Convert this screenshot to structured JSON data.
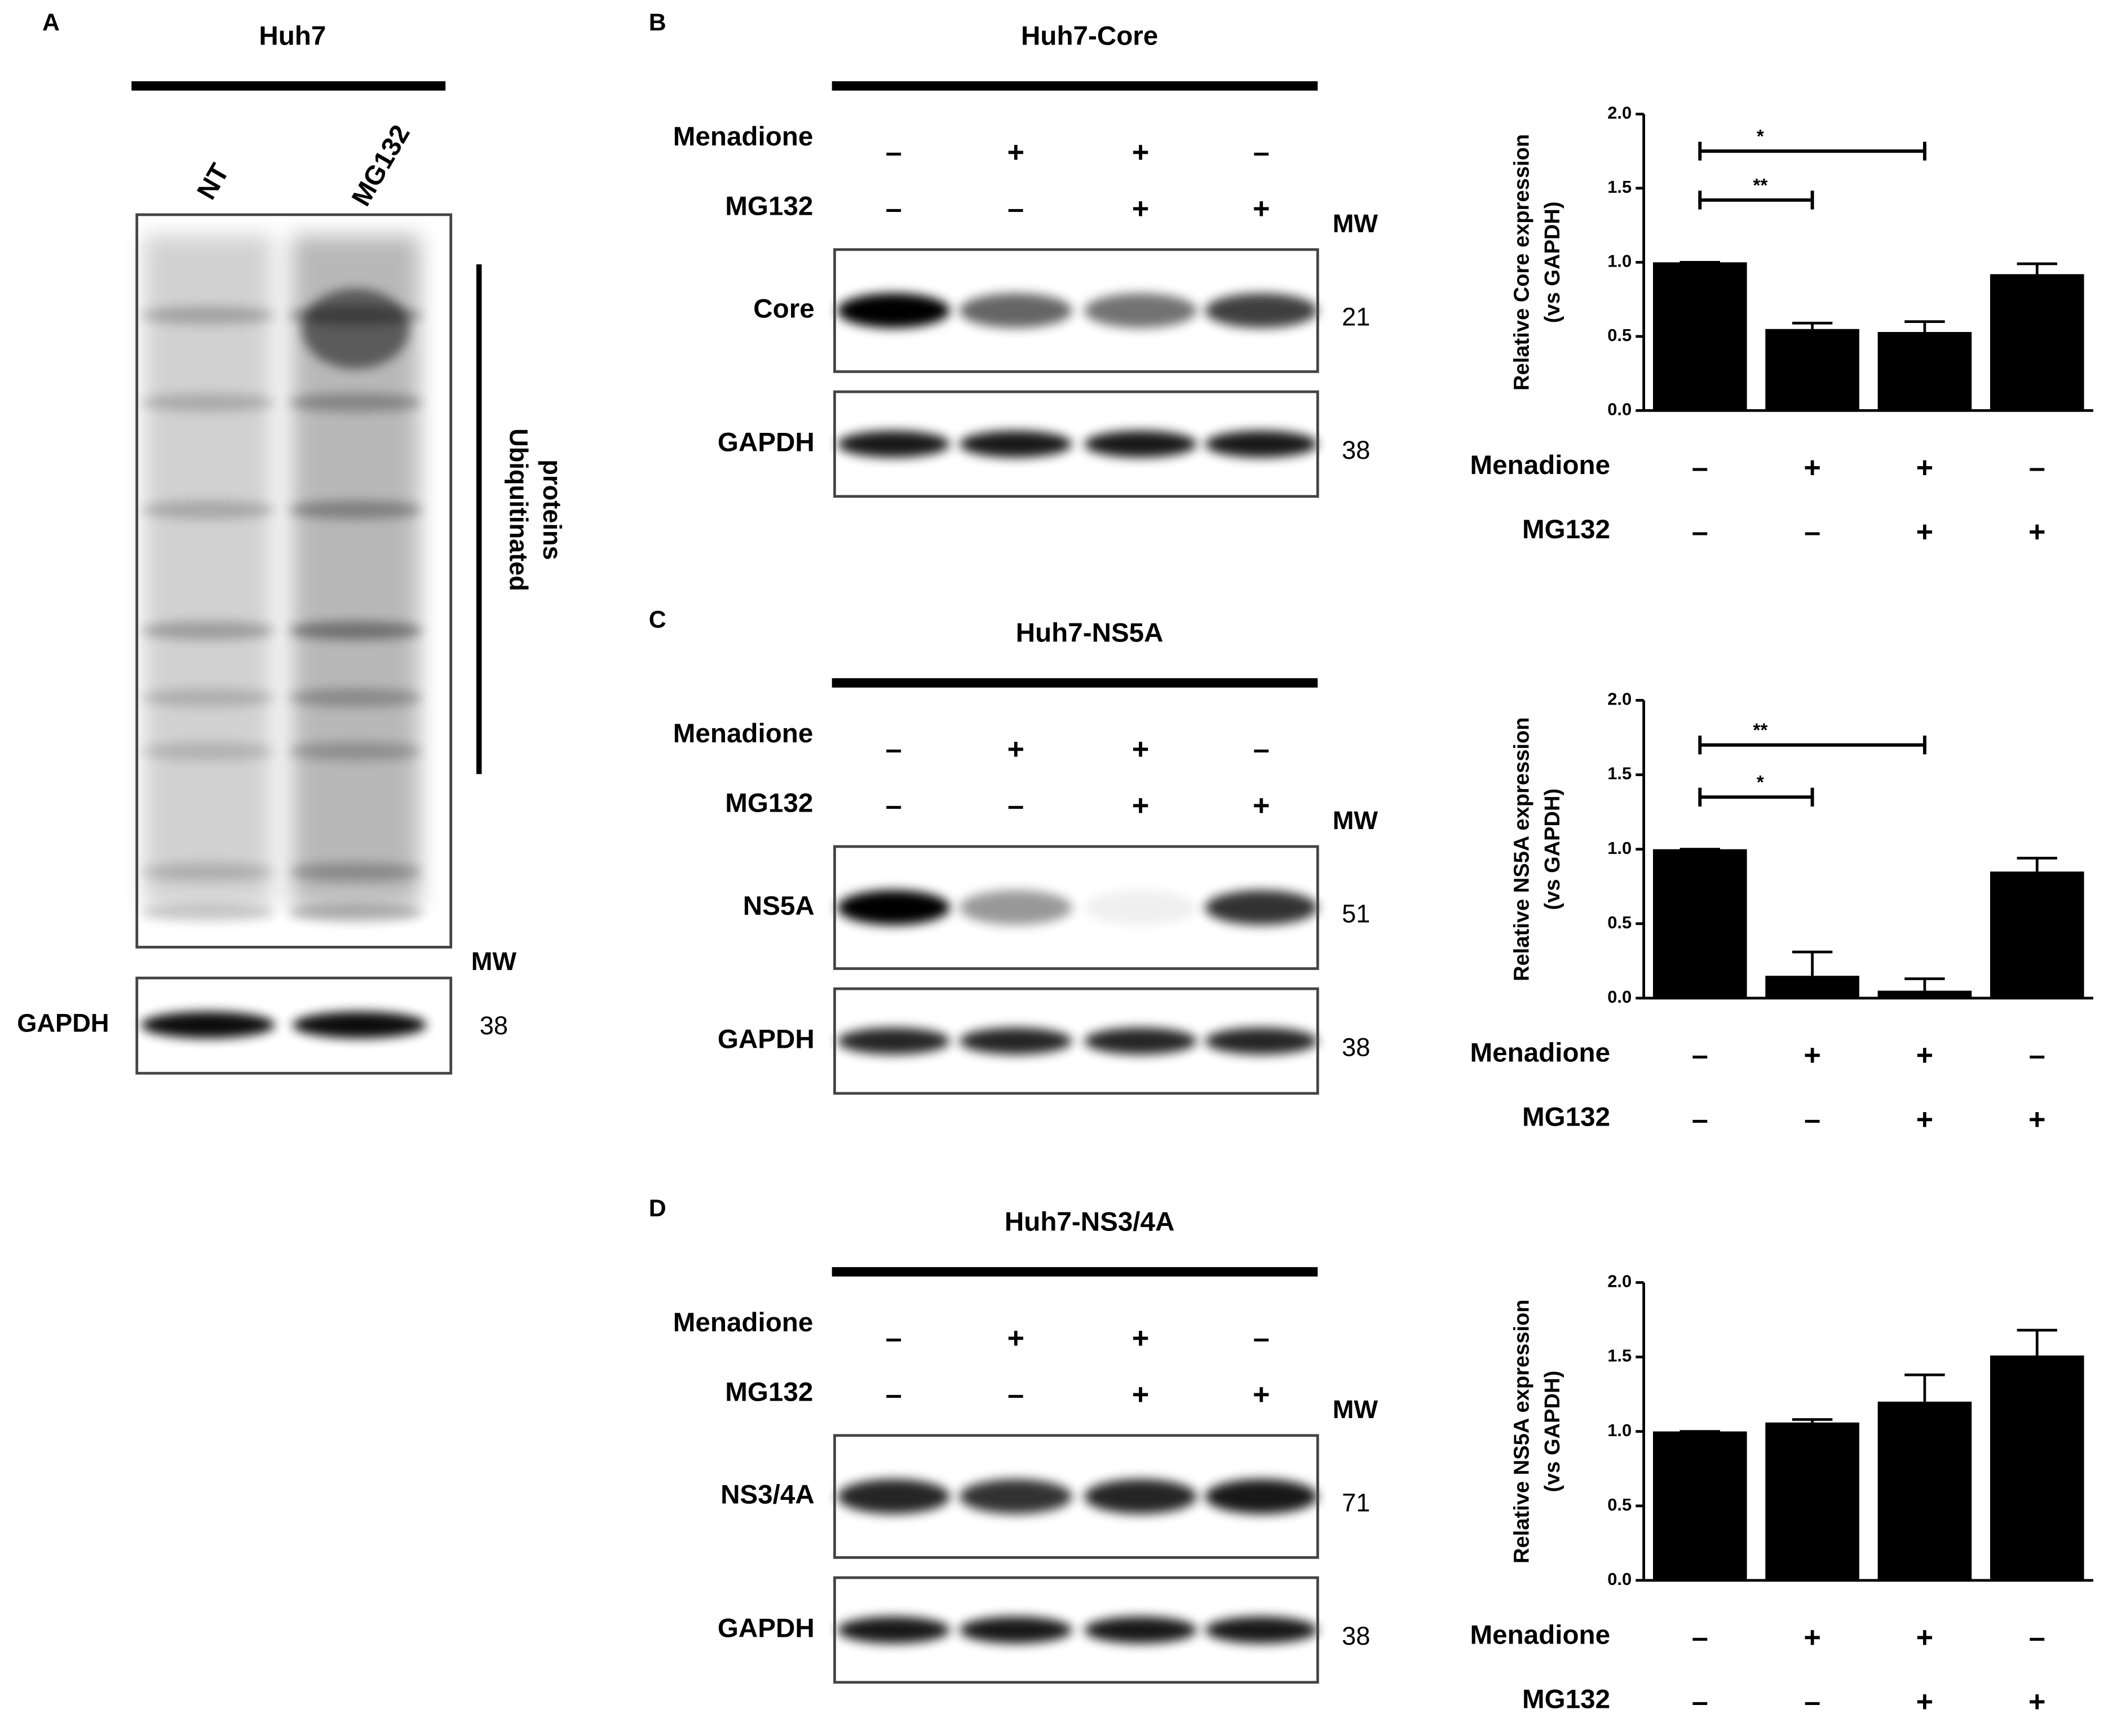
{
  "panel_a": {
    "letter": "A",
    "title": "Huh7",
    "lanes": [
      "NT",
      "MG132"
    ],
    "bracket_label": [
      "Ubiquitinated",
      "proteins"
    ],
    "mw_header": "MW",
    "loading": {
      "label": "GAPDH",
      "mw": "38"
    }
  },
  "blots": [
    {
      "letter": "B",
      "title": "Huh7-Core",
      "treatments": [
        {
          "name": "Menadione",
          "signs": [
            "–",
            "+",
            "+",
            "–"
          ]
        },
        {
          "name": "MG132",
          "signs": [
            "–",
            "–",
            "+",
            "+"
          ]
        }
      ],
      "mw_header": "MW",
      "rows": [
        {
          "label": "Core",
          "mw": "21"
        },
        {
          "label": "GAPDH",
          "mw": "38"
        }
      ]
    },
    {
      "letter": "C",
      "title": "Huh7-NS5A",
      "treatments": [
        {
          "name": "Menadione",
          "signs": [
            "–",
            "+",
            "+",
            "–"
          ]
        },
        {
          "name": "MG132",
          "signs": [
            "–",
            "–",
            "+",
            "+"
          ]
        }
      ],
      "mw_header": "MW",
      "rows": [
        {
          "label": "NS5A",
          "mw": "51"
        },
        {
          "label": "GAPDH",
          "mw": "38"
        }
      ]
    },
    {
      "letter": "D",
      "title": "Huh7-NS3/4A",
      "treatments": [
        {
          "name": "Menadione",
          "signs": [
            "–",
            "+",
            "+",
            "–"
          ]
        },
        {
          "name": "MG132",
          "signs": [
            "–",
            "–",
            "+",
            "+"
          ]
        }
      ],
      "mw_header": "MW",
      "rows": [
        {
          "label": "NS3/4A",
          "mw": "71"
        },
        {
          "label": "GAPDH",
          "mw": "38"
        }
      ]
    }
  ],
  "chart_data": [
    {
      "type": "bar",
      "y_label": [
        "Relative Core expression",
        "(vs GAPDH)"
      ],
      "categories": [
        null,
        null,
        null,
        null
      ],
      "values": [
        1.0,
        0.55,
        0.53,
        0.92
      ],
      "errors": [
        0,
        0.04,
        0.07,
        0.07
      ],
      "color": "#000000",
      "ylim": [
        0,
        2
      ],
      "yticks": [
        {
          "value": 0,
          "label": "0.0"
        },
        {
          "value": 0.5,
          "label": "0.5"
        },
        {
          "value": 1,
          "label": "1.0"
        },
        {
          "value": 1.5,
          "label": "1.5"
        },
        {
          "value": 2,
          "label": "2.0"
        }
      ],
      "treatments": [
        {
          "name": "Menadione",
          "signs": [
            "–",
            "+",
            "+",
            "–"
          ]
        },
        {
          "name": "MG132",
          "signs": [
            "–",
            "–",
            "+",
            "+"
          ]
        }
      ],
      "significance": [
        {
          "label": "**",
          "from": 0,
          "to": 1,
          "y": 1.42
        },
        {
          "label": "*",
          "from": 0,
          "to": 2,
          "y": 1.75
        }
      ]
    },
    {
      "type": "bar",
      "y_label": [
        "Relative NS5A expression",
        "(vs GAPDH)"
      ],
      "categories": [
        null,
        null,
        null,
        null
      ],
      "values": [
        1.0,
        0.15,
        0.05,
        0.85
      ],
      "errors": [
        0,
        0.16,
        0.08,
        0.09
      ],
      "color": "#000000",
      "ylim": [
        0,
        2
      ],
      "yticks": [
        {
          "value": 0,
          "label": "0.0"
        },
        {
          "value": 0.5,
          "label": "0.5"
        },
        {
          "value": 1,
          "label": "1.0"
        },
        {
          "value": 1.5,
          "label": "1.5"
        },
        {
          "value": 2,
          "label": "2.0"
        }
      ],
      "treatments": [
        {
          "name": "Menadione",
          "signs": [
            "–",
            "+",
            "+",
            "–"
          ]
        },
        {
          "name": "MG132",
          "signs": [
            "–",
            "–",
            "+",
            "+"
          ]
        }
      ],
      "significance": [
        {
          "label": "*",
          "from": 0,
          "to": 1,
          "y": 1.35
        },
        {
          "label": "**",
          "from": 0,
          "to": 2,
          "y": 1.7
        }
      ]
    },
    {
      "type": "bar",
      "y_label": [
        "Relative NS5A expression",
        "(vs GAPDH)"
      ],
      "categories": [
        null,
        null,
        null,
        null
      ],
      "values": [
        1.0,
        1.06,
        1.2,
        1.51
      ],
      "errors": [
        0,
        0.02,
        0.18,
        0.17
      ],
      "color": "#000000",
      "ylim": [
        0,
        2
      ],
      "yticks": [
        {
          "value": 0,
          "label": "0.0"
        },
        {
          "value": 0.5,
          "label": "0.5"
        },
        {
          "value": 1,
          "label": "1.0"
        },
        {
          "value": 1.5,
          "label": "1.5"
        },
        {
          "value": 2,
          "label": "2.0"
        }
      ],
      "treatments": [
        {
          "name": "Menadione",
          "signs": [
            "–",
            "+",
            "+",
            "–"
          ]
        },
        {
          "name": "MG132",
          "signs": [
            "–",
            "–",
            "+",
            "+"
          ]
        }
      ],
      "significance": []
    }
  ]
}
